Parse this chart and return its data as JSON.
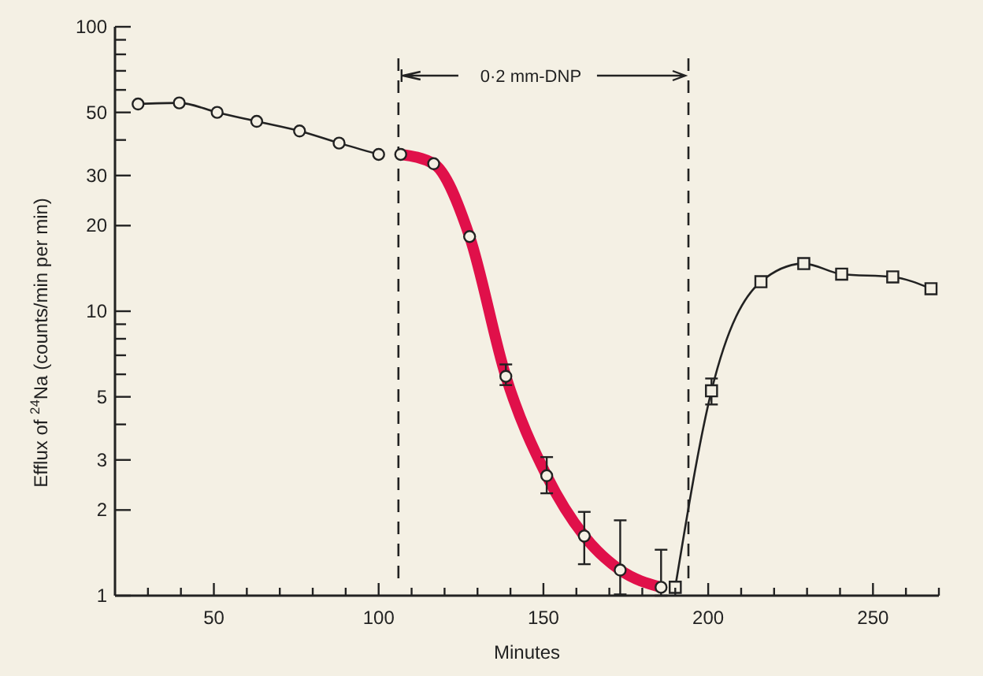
{
  "chart_data": {
    "type": "line",
    "xlabel": "Minutes",
    "ylabel": "Efflux of $^{24}$Na (counts/min per min)",
    "xlim": [
      20,
      270
    ],
    "ylim": [
      1,
      100
    ],
    "log": "y",
    "grid": false,
    "marker": "circle",
    "line_style": "solid",
    "xticks": [
      {
        "value": 30,
        "label": null
      },
      {
        "value": 40,
        "label": null
      },
      50,
      {
        "value": 60,
        "label": null
      },
      {
        "value": 70,
        "label": null
      },
      {
        "value": 80,
        "label": null
      },
      {
        "value": 90,
        "label": null
      },
      100,
      {
        "value": 110,
        "label": null
      },
      {
        "value": 120,
        "label": null
      },
      {
        "value": 130,
        "label": null
      },
      {
        "value": 140,
        "label": null
      },
      150,
      {
        "value": 160,
        "label": null
      },
      {
        "value": 170,
        "label": null
      },
      {
        "value": 180,
        "label": null
      },
      {
        "value": 190,
        "label": null
      },
      200,
      {
        "value": 210,
        "label": null
      },
      {
        "value": 220,
        "label": null
      },
      {
        "value": 230,
        "label": null
      },
      {
        "value": 240,
        "label": null
      },
      250,
      {
        "value": 260,
        "label": null
      },
      {
        "value": 270,
        "label": null
      }
    ],
    "yticks": [
      1,
      2,
      3,
      {
        "value": 4,
        "label": null
      },
      5,
      {
        "value": 6,
        "label": null
      },
      {
        "value": 7,
        "label": null
      },
      {
        "value": 8,
        "label": null
      },
      {
        "value": 9,
        "label": null
      },
      10,
      20,
      30,
      {
        "value": 40,
        "label": null
      },
      50,
      {
        "value": 60,
        "label": null
      },
      {
        "value": 70,
        "label": null
      },
      {
        "value": 80,
        "label": null
      },
      {
        "value": 90,
        "label": null
      },
      100
    ],
    "series": [
      {
        "color": "#222222",
        "x": [
          27,
          39.5,
          51,
          63,
          76,
          88,
          100
        ],
        "values": [
          53.5,
          54,
          50,
          46.5,
          43,
          39,
          35.6
        ]
      },
      {
        "color": "#e0104a",
        "marker": "circle",
        "x": [
          106.7,
          116.7,
          127.6,
          138.6,
          151,
          162.4,
          173.3,
          185.7
        ],
        "values": [
          35.6,
          33,
          18.3,
          5.9,
          2.64,
          1.62,
          1.23,
          1.07
        ],
        "errors": [
          null,
          null,
          null,
          [
            5.5,
            6.5
          ],
          [
            2.29,
            3.07
          ],
          [
            1.29,
            1.97
          ],
          [
            1.01,
            1.84
          ],
          [
            1.0,
            1.45
          ]
        ]
      },
      {
        "color": "#222222",
        "marker": "square",
        "x": [
          190,
          201,
          216,
          229,
          240.5,
          256,
          267.6
        ],
        "values": [
          1.07,
          5.25,
          12.7,
          14.7,
          13.5,
          13.2,
          12
        ],
        "errors": [
          null,
          [
            4.7,
            5.8
          ],
          null,
          null,
          null,
          null,
          null
        ]
      }
    ],
    "ref_lines": [
      {
        "axis": "x",
        "value": 106,
        "line_style": "dashed",
        "color": "#222222"
      },
      {
        "axis": "x",
        "value": 194,
        "line_style": "dashed",
        "color": "#222222"
      }
    ],
    "annotations": [
      "0·2 mm-DNP"
    ]
  }
}
